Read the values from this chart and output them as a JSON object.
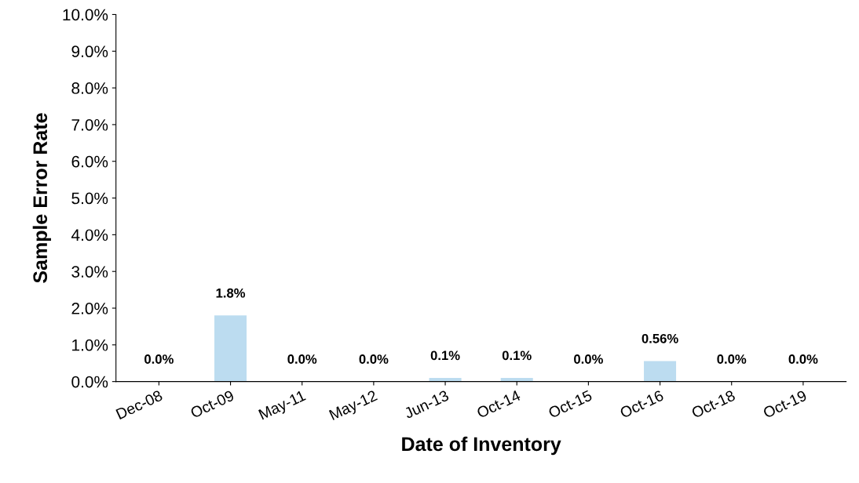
{
  "chart_data": {
    "type": "bar",
    "xlabel": "Date of Inventory",
    "ylabel": "Sample Error Rate",
    "categories": [
      "Dec-08",
      "Oct-09",
      "May-11",
      "May-12",
      "Jun-13",
      "Oct-14",
      "Oct-15",
      "Oct-16",
      "Oct-18",
      "Oct-19"
    ],
    "values": [
      0.0,
      1.8,
      0.0,
      0.0,
      0.1,
      0.1,
      0.0,
      0.56,
      0.0,
      0.0
    ],
    "value_labels": [
      "0.0%",
      "1.8%",
      "0.0%",
      "0.0%",
      "0.1%",
      "0.1%",
      "0.0%",
      "0.56%",
      "0.0%",
      "0.0%"
    ],
    "color": "#bcdcf0",
    "ylim": [
      0,
      10
    ],
    "yticks": [
      {
        "value": 0,
        "label": "0.0%"
      },
      {
        "value": 1,
        "label": "1.0%"
      },
      {
        "value": 2,
        "label": "2.0%"
      },
      {
        "value": 3,
        "label": "3.0%"
      },
      {
        "value": 4,
        "label": "4.0%"
      },
      {
        "value": 5,
        "label": "5.0%"
      },
      {
        "value": 6,
        "label": "6.0%"
      },
      {
        "value": 7,
        "label": "7.0%"
      },
      {
        "value": 8,
        "label": "8.0%"
      },
      {
        "value": 9,
        "label": "9.0%"
      },
      {
        "value": 10,
        "label": "10.0%"
      }
    ],
    "grid": false
  }
}
